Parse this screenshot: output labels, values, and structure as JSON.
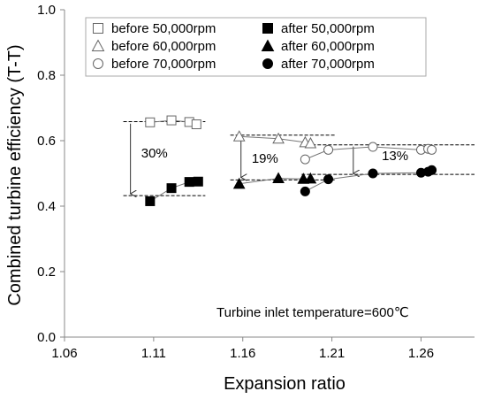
{
  "chart_data": {
    "type": "scatter",
    "xlabel": "Expansion ratio",
    "ylabel": "Combined turbine efficiency (T-T)",
    "xlim": [
      1.06,
      1.29
    ],
    "ylim": [
      0.0,
      1.0
    ],
    "xticks": [
      "1.06",
      "1.11",
      "1.16",
      "1.21",
      "1.26"
    ],
    "xtick_values": [
      1.06,
      1.11,
      1.16,
      1.21,
      1.26
    ],
    "yticks": [
      "0.0",
      "0.2",
      "0.4",
      "0.6",
      "0.8",
      "1.0"
    ],
    "ytick_values": [
      0.0,
      0.2,
      0.4,
      0.6,
      0.8,
      1.0
    ],
    "grid": false,
    "legend_position": "top",
    "series": [
      {
        "name": "before 50,000rpm",
        "marker": "square-open",
        "x": [
          1.108,
          1.12,
          1.13,
          1.134
        ],
        "y": [
          0.656,
          0.662,
          0.657,
          0.65
        ]
      },
      {
        "name": "after 50,000rpm",
        "marker": "square-filled",
        "x": [
          1.108,
          1.12,
          1.13,
          1.135
        ],
        "y": [
          0.415,
          0.455,
          0.474,
          0.475
        ]
      },
      {
        "name": "before 60,000rpm",
        "marker": "triangle-open",
        "x": [
          1.158,
          1.18,
          1.195,
          1.198
        ],
        "y": [
          0.613,
          0.606,
          0.595,
          0.592
        ]
      },
      {
        "name": "after 60,000rpm",
        "marker": "triangle-filled",
        "x": [
          1.158,
          1.18,
          1.194,
          1.198
        ],
        "y": [
          0.468,
          0.485,
          0.483,
          0.484
        ]
      },
      {
        "name": "before 70,000rpm",
        "marker": "circle-open",
        "x": [
          1.195,
          1.208,
          1.233,
          1.26,
          1.264,
          1.266
        ],
        "y": [
          0.543,
          0.572,
          0.581,
          0.572,
          0.575,
          0.572
        ]
      },
      {
        "name": "after 70,000rpm",
        "marker": "circle-filled",
        "x": [
          1.195,
          1.208,
          1.233,
          1.26,
          1.264,
          1.266
        ],
        "y": [
          0.445,
          0.482,
          0.5,
          0.502,
          0.505,
          0.51
        ]
      }
    ],
    "reference_lines": [
      {
        "x": [
          1.093,
          1.139
        ],
        "y": 0.658
      },
      {
        "x": [
          1.093,
          1.139
        ],
        "y": 0.432
      },
      {
        "x": [
          1.153,
          1.212
        ],
        "y": 0.617
      },
      {
        "x": [
          1.153,
          1.212
        ],
        "y": 0.48
      },
      {
        "x": [
          1.193,
          1.29
        ],
        "y": 0.587
      },
      {
        "x": [
          1.193,
          1.29
        ],
        "y": 0.497
      }
    ],
    "drops": [
      {
        "x": 1.097,
        "from": 0.652,
        "to": 0.438,
        "label": "30%",
        "label_x": 1.103,
        "label_y": 0.548
      },
      {
        "x": 1.159,
        "from": 0.612,
        "to": 0.488,
        "label": "19%",
        "label_x": 1.165,
        "label_y": 0.532
      },
      {
        "x": 1.222,
        "from": 0.582,
        "to": 0.5,
        "label": "13%",
        "label_x": 1.238,
        "label_y": 0.541
      }
    ],
    "annotation": "Turbine inlet temperature=600℃"
  }
}
